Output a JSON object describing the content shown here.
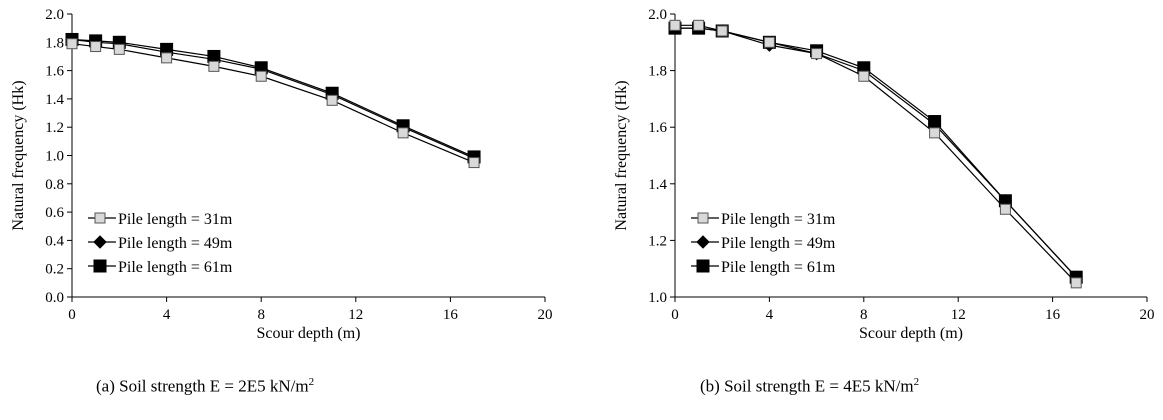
{
  "chart_data": [
    {
      "type": "line",
      "panel": "a",
      "caption": "(a) Soil strength E = 2E5 kN/m",
      "caption_sup": "2",
      "xlabel": "Scour depth (m)",
      "ylabel": "Natural frequency (Hk)",
      "xlim": [
        0,
        20
      ],
      "ylim": [
        0,
        2.0
      ],
      "xticks": [
        0,
        4,
        8,
        12,
        16,
        20
      ],
      "xtick_labels": [
        "0",
        "4",
        "8",
        "12",
        "16",
        "20"
      ],
      "yticks": [
        0,
        0.2,
        0.4,
        0.6,
        0.8,
        1.0,
        1.2,
        1.4,
        1.6,
        1.8,
        2.0
      ],
      "ytick_labels": [
        "0.0",
        "0.2",
        "0.4",
        "0.6",
        "0.8",
        "1.0",
        "1.2",
        "1.4",
        "1.6",
        "1.8",
        "2.0"
      ],
      "grid": false,
      "legend_position": "bottom-left",
      "series": [
        {
          "name": "Pile length = 31m",
          "marker": "square-open",
          "color": "#d9d9d9",
          "x": [
            0,
            1,
            2,
            4,
            6,
            8,
            11,
            14,
            17
          ],
          "y": [
            1.79,
            1.77,
            1.75,
            1.69,
            1.63,
            1.56,
            1.39,
            1.16,
            0.95
          ]
        },
        {
          "name": "Pile length = 49m",
          "marker": "diamond",
          "color": "#000000",
          "x": [
            0,
            1,
            2,
            4,
            6,
            8,
            11,
            14,
            17
          ],
          "y": [
            1.82,
            1.8,
            1.79,
            1.73,
            1.68,
            1.61,
            1.43,
            1.2,
            0.98
          ]
        },
        {
          "name": "Pile length = 61m",
          "marker": "square",
          "color": "#000000",
          "x": [
            0,
            1,
            2,
            4,
            6,
            8,
            11,
            14,
            17
          ],
          "y": [
            1.82,
            1.81,
            1.8,
            1.75,
            1.7,
            1.62,
            1.44,
            1.21,
            0.99
          ]
        }
      ]
    },
    {
      "type": "line",
      "panel": "b",
      "caption": "(b) Soil strength E = 4E5 kN/m",
      "caption_sup": "2",
      "xlabel": "Scour depth (m)",
      "ylabel": "Natural frequency (Hk)",
      "xlim": [
        0,
        20
      ],
      "ylim": [
        1.0,
        2.0
      ],
      "xticks": [
        0,
        4,
        8,
        12,
        16,
        20
      ],
      "xtick_labels": [
        "0",
        "4",
        "8",
        "12",
        "16",
        "20"
      ],
      "yticks": [
        1.0,
        1.2,
        1.4,
        1.6,
        1.8,
        2.0
      ],
      "ytick_labels": [
        "1.0",
        "1.2",
        "1.4",
        "1.6",
        "1.8",
        "2.0"
      ],
      "grid": false,
      "legend_position": "bottom-left",
      "series": [
        {
          "name": "Pile length = 31m",
          "marker": "square-open",
          "color": "#d9d9d9",
          "x": [
            0,
            1,
            2,
            4,
            6,
            8,
            11,
            14,
            17
          ],
          "y": [
            1.96,
            1.96,
            1.94,
            1.9,
            1.86,
            1.78,
            1.58,
            1.31,
            1.05
          ]
        },
        {
          "name": "Pile length = 49m",
          "marker": "diamond",
          "color": "#000000",
          "x": [
            0,
            1,
            2,
            4,
            6,
            8,
            11,
            14,
            17
          ],
          "y": [
            1.95,
            1.95,
            1.94,
            1.89,
            1.86,
            1.8,
            1.61,
            1.34,
            1.07
          ]
        },
        {
          "name": "Pile length = 61m",
          "marker": "square",
          "color": "#000000",
          "x": [
            0,
            1,
            2,
            4,
            6,
            8,
            11,
            14,
            17
          ],
          "y": [
            1.95,
            1.95,
            1.94,
            1.9,
            1.87,
            1.81,
            1.62,
            1.34,
            1.07
          ]
        }
      ]
    }
  ]
}
